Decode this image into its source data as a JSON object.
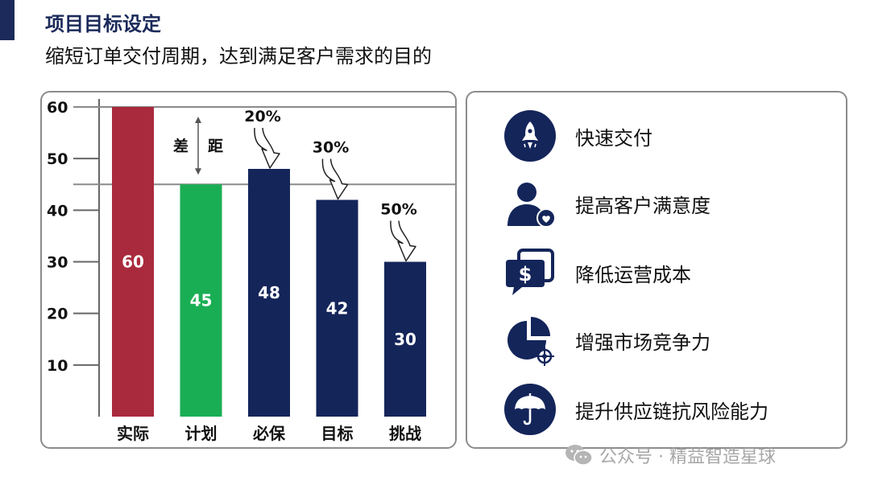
{
  "header": {
    "title": "项目目标设定",
    "subtitle": "缩短订单交付周期，达到满足客户需求的目的"
  },
  "chart_data": {
    "type": "bar",
    "categories": [
      "实际",
      "计划",
      "必保",
      "目标",
      "挑战"
    ],
    "values": [
      60,
      45,
      48,
      42,
      30
    ],
    "value_labels": [
      "60",
      "45",
      "48",
      "42",
      "30"
    ],
    "colors": [
      "#a92a3c",
      "#1aae54",
      "#14255a",
      "#14255a",
      "#14255a"
    ],
    "ylim": [
      0,
      60
    ],
    "yticks": [
      10,
      20,
      30,
      40,
      50,
      60
    ],
    "ytick_labels": [
      "10",
      "20",
      "30",
      "40",
      "50",
      "60"
    ],
    "reference_lines": [
      60,
      45
    ],
    "gap_annotation": {
      "from": 60,
      "to": 45,
      "label_left": "差",
      "label_right": "距"
    },
    "reduction_annotations": [
      {
        "category": "必保",
        "label": "20%"
      },
      {
        "category": "目标",
        "label": "30%"
      },
      {
        "category": "挑战",
        "label": "50%"
      }
    ],
    "grid": false,
    "legend": "none"
  },
  "benefits": [
    {
      "label": "快速交付",
      "icon": "rocket-icon"
    },
    {
      "label": "提高客户满意度",
      "icon": "customer-heart-icon"
    },
    {
      "label": "降低运营成本",
      "icon": "cost-dollar-icon"
    },
    {
      "label": "增强市场竞争力",
      "icon": "market-target-icon"
    },
    {
      "label": "提升供应链抗风险能力",
      "icon": "umbrella-icon"
    }
  ],
  "watermark": {
    "text": "公众号 · 精益智造星球",
    "icon": "wechat-icon"
  },
  "colors": {
    "accent": "#1b2a5a",
    "icon_circle": "#14255a",
    "panel_border": "#8c8c8c"
  }
}
